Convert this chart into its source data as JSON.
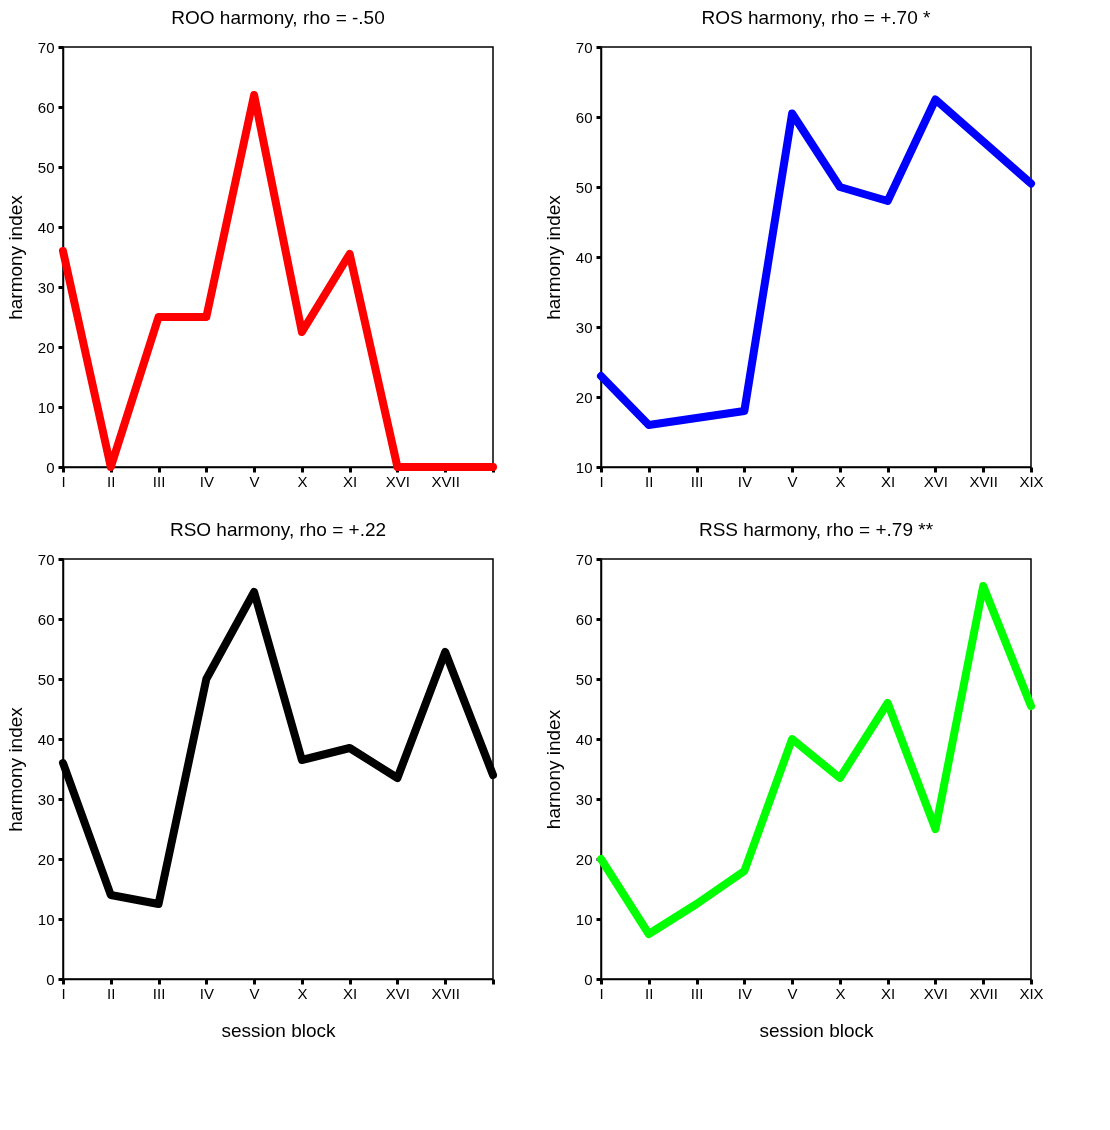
{
  "chart_data": [
    {
      "type": "line",
      "title": "ROO harmony, rho = -.50",
      "ylabel": "harmony index",
      "categories": [
        "I",
        "II",
        "III",
        "IV",
        "V",
        "X",
        "XI",
        "XVI",
        "XVII",
        null
      ],
      "series": [
        {
          "color": "#ff0000",
          "values": [
            36,
            0,
            25,
            25,
            62,
            22.5,
            35.5,
            0,
            0,
            0
          ]
        }
      ],
      "ylim": [
        0,
        70
      ],
      "yticks": [
        0,
        10,
        20,
        30,
        40,
        50,
        60,
        70
      ],
      "grid": false,
      "line_style": "solid"
    },
    {
      "type": "line",
      "title": "ROS harmony, rho = +.70 *",
      "ylabel": "harmony index",
      "categories": [
        "I",
        "II",
        "III",
        "IV",
        "V",
        "X",
        "XI",
        "XVI",
        "XVII",
        "XIX"
      ],
      "series": [
        {
          "color": "#0000ff",
          "values": [
            23,
            16,
            17,
            18,
            60.5,
            50,
            48,
            62.5,
            56.5,
            50.5
          ]
        }
      ],
      "ylim": [
        10,
        70
      ],
      "yticks": [
        10,
        20,
        30,
        40,
        50,
        60,
        70
      ],
      "grid": false,
      "line_style": "solid"
    },
    {
      "type": "line",
      "title": "RSO harmony, rho = +.22",
      "xlabel": "session block",
      "ylabel": "harmony index",
      "categories": [
        "I",
        "II",
        "III",
        "IV",
        "V",
        "X",
        "XI",
        "XVI",
        "XVII",
        null
      ],
      "series": [
        {
          "color": "#000000",
          "values": [
            36,
            14,
            12.5,
            50,
            64.5,
            36.5,
            38.5,
            33.5,
            54.5,
            34
          ]
        }
      ],
      "ylim": [
        0,
        70
      ],
      "yticks": [
        0,
        10,
        20,
        30,
        40,
        50,
        60,
        70
      ],
      "grid": false,
      "line_style": "solid"
    },
    {
      "type": "line",
      "title": "RSS harmony, rho = +.79 **",
      "xlabel": "session block",
      "ylabel": "harnony index",
      "categories": [
        "I",
        "II",
        "III",
        "IV",
        "V",
        "X",
        "XI",
        "XVI",
        "XVII",
        "XIX"
      ],
      "series": [
        {
          "color": "#00ff00",
          "values": [
            20,
            7.5,
            12.5,
            18,
            40,
            33.5,
            46,
            25,
            65.5,
            45.5
          ]
        }
      ],
      "ylim": [
        0,
        70
      ],
      "yticks": [
        0,
        10,
        20,
        30,
        40,
        50,
        60,
        70
      ],
      "grid": false,
      "line_style": "solid"
    }
  ]
}
